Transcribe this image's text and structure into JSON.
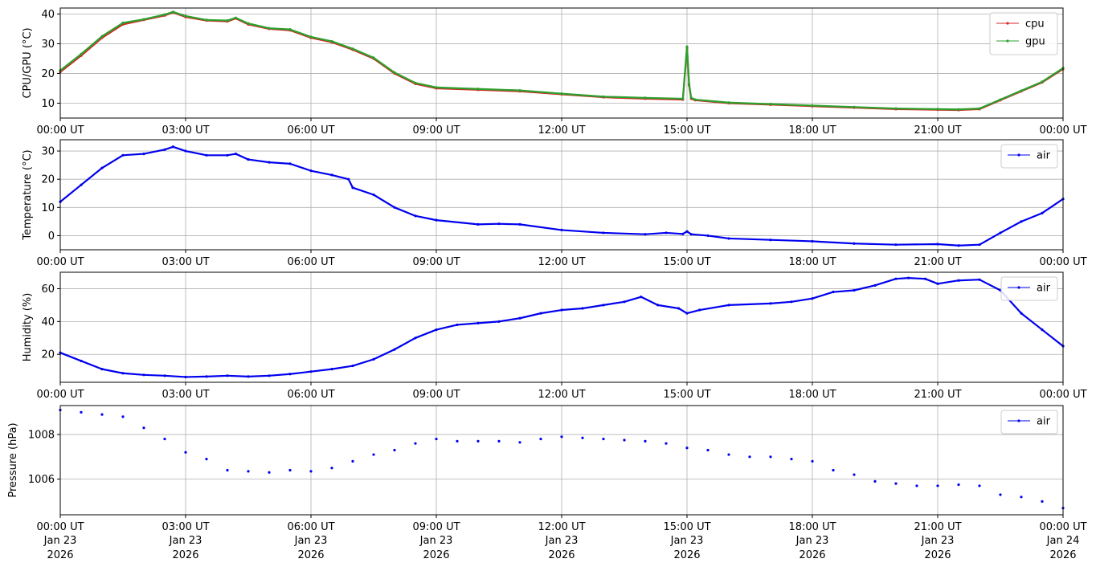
{
  "chart_data": [
    {
      "type": "line",
      "ylabel": "CPU/GPU (°C)",
      "xlabel": "",
      "ylim": [
        5,
        42
      ],
      "yticks": [
        10,
        20,
        30,
        40
      ],
      "xticks": [
        "00:00 UT",
        "03:00 UT",
        "06:00 UT",
        "09:00 UT",
        "12:00 UT",
        "15:00 UT",
        "18:00 UT",
        "21:00 UT",
        "00:00 UT"
      ],
      "xlim_hours": [
        0,
        24
      ],
      "grid": true,
      "legend": "top-right",
      "series": [
        {
          "name": "cpu",
          "color": "#d62728",
          "x": [
            0,
            0.5,
            1,
            1.5,
            2,
            2.5,
            2.7,
            3,
            3.5,
            4,
            4.2,
            4.5,
            5,
            5.5,
            6,
            6.5,
            7,
            7.5,
            8,
            8.5,
            9,
            10,
            11,
            12,
            13,
            14,
            14.9,
            15,
            15.05,
            15.1,
            15.2,
            16,
            17,
            18,
            19,
            20,
            21,
            21.5,
            22,
            22.5,
            23,
            23.5,
            24
          ],
          "values": [
            20.5,
            26,
            32,
            36.5,
            38,
            39.5,
            40.5,
            39,
            37.8,
            37.5,
            38.5,
            36.5,
            35,
            34.5,
            32,
            30.5,
            28,
            25,
            20,
            16.5,
            15,
            14.5,
            14,
            13,
            12,
            11.5,
            11.2,
            28.5,
            16,
            11.5,
            11,
            10,
            9.5,
            9,
            8.5,
            8,
            7.8,
            7.7,
            8,
            11,
            14,
            17,
            21.5
          ]
        },
        {
          "name": "gpu",
          "color": "#2ca02c",
          "x": [
            0,
            0.5,
            1,
            1.5,
            2,
            2.5,
            2.7,
            3,
            3.5,
            4,
            4.2,
            4.5,
            5,
            5.5,
            6,
            6.5,
            7,
            7.5,
            8,
            8.5,
            9,
            10,
            11,
            12,
            13,
            14,
            14.9,
            15,
            15.05,
            15.1,
            15.2,
            16,
            17,
            18,
            19,
            20,
            21,
            21.5,
            22,
            22.5,
            23,
            23.5,
            24
          ],
          "values": [
            21,
            26.5,
            32.5,
            37,
            38.2,
            39.8,
            40.7,
            39.3,
            38,
            37.8,
            38.7,
            36.8,
            35.2,
            34.8,
            32.3,
            30.8,
            28.3,
            25.3,
            20.3,
            16.8,
            15.3,
            14.8,
            14.3,
            13.2,
            12.2,
            11.8,
            11.5,
            29,
            16.5,
            11.8,
            11.2,
            10.2,
            9.7,
            9.2,
            8.7,
            8.2,
            8,
            7.9,
            8.2,
            11.2,
            14.2,
            17.2,
            21.8
          ]
        }
      ]
    },
    {
      "type": "line",
      "ylabel": "Temperature (°C)",
      "xlabel": "",
      "ylim": [
        -5,
        34
      ],
      "yticks": [
        0,
        10,
        20,
        30
      ],
      "xticks": [
        "00:00 UT",
        "03:00 UT",
        "06:00 UT",
        "09:00 UT",
        "12:00 UT",
        "15:00 UT",
        "18:00 UT",
        "21:00 UT",
        "00:00 UT"
      ],
      "xlim_hours": [
        0,
        24
      ],
      "grid": true,
      "legend": "top-right",
      "series": [
        {
          "name": "air",
          "color": "#0000ee",
          "x": [
            0,
            0.5,
            1,
            1.5,
            2,
            2.5,
            2.7,
            3,
            3.5,
            4,
            4.2,
            4.5,
            5,
            5.5,
            6,
            6.5,
            6.9,
            7,
            7.5,
            8,
            8.5,
            9,
            10,
            10.5,
            11,
            12,
            13,
            14,
            14.5,
            14.9,
            15,
            15.1,
            15.5,
            16,
            17,
            18,
            19,
            20,
            21,
            21.5,
            22,
            22.5,
            23,
            23.5,
            24
          ],
          "values": [
            12,
            18,
            24,
            28.5,
            29,
            30.5,
            31.5,
            30,
            28.5,
            28.5,
            29,
            27,
            26,
            25.5,
            23,
            21.5,
            20,
            17,
            14.5,
            10,
            7,
            5.5,
            4,
            4.2,
            4,
            2,
            1,
            0.5,
            1,
            0.6,
            1.5,
            0.5,
            0,
            -1,
            -1.5,
            -2,
            -2.8,
            -3.2,
            -3,
            -3.5,
            -3.2,
            1,
            5,
            8,
            13
          ]
        }
      ]
    },
    {
      "type": "line",
      "ylabel": "Humidity (%)",
      "xlabel": "",
      "ylim": [
        3,
        70
      ],
      "yticks": [
        20,
        40,
        60
      ],
      "xticks": [
        "00:00 UT",
        "03:00 UT",
        "06:00 UT",
        "09:00 UT",
        "12:00 UT",
        "15:00 UT",
        "18:00 UT",
        "21:00 UT",
        "00:00 UT"
      ],
      "xlim_hours": [
        0,
        24
      ],
      "grid": true,
      "legend": "top-right",
      "series": [
        {
          "name": "air",
          "color": "#0000ee",
          "x": [
            0,
            0.5,
            1,
            1.5,
            2,
            2.5,
            3,
            3.5,
            4,
            4.5,
            5,
            5.5,
            6,
            6.5,
            7,
            7.5,
            8,
            8.5,
            9,
            9.5,
            10,
            10.5,
            11,
            11.5,
            12,
            12.5,
            13,
            13.5,
            13.9,
            14.3,
            14.8,
            15,
            15.3,
            16,
            17,
            17.5,
            18,
            18.5,
            19,
            19.5,
            20,
            20.3,
            20.7,
            21,
            21.5,
            22,
            22.5,
            23,
            23.5,
            24
          ],
          "values": [
            21,
            16,
            11,
            8.5,
            7.5,
            7,
            6.2,
            6.5,
            7,
            6.5,
            7,
            8,
            9.5,
            11,
            13,
            17,
            23,
            30,
            35,
            38,
            39,
            40,
            42,
            45,
            47,
            48,
            50,
            52,
            55,
            50,
            48,
            45,
            47,
            50,
            51,
            52,
            54,
            58,
            59,
            62,
            66,
            66.5,
            66,
            63,
            65,
            65.5,
            59,
            45,
            35,
            25
          ]
        }
      ]
    },
    {
      "type": "scatter",
      "ylabel": "Pressure (hPa)",
      "xlabel": "",
      "ylim": [
        1004.4,
        1009.3
      ],
      "yticks": [
        1006,
        1008
      ],
      "xticks": [
        "00:00 UT",
        "03:00 UT",
        "06:00 UT",
        "09:00 UT",
        "12:00 UT",
        "15:00 UT",
        "18:00 UT",
        "21:00 UT",
        "00:00 UT"
      ],
      "xticks_line2": [
        "Jan 23",
        "Jan 23",
        "Jan 23",
        "Jan 23",
        "Jan 23",
        "Jan 23",
        "Jan 23",
        "Jan 23",
        "Jan 24"
      ],
      "xticks_line3": [
        "2026",
        "2026",
        "2026",
        "2026",
        "2026",
        "2026",
        "2026",
        "2026",
        "2026"
      ],
      "xlim_hours": [
        0,
        24
      ],
      "grid": true,
      "legend": "top-right",
      "series": [
        {
          "name": "air",
          "color": "#0000ee",
          "x": [
            0,
            0.5,
            1,
            1.5,
            2,
            2.5,
            3,
            3.5,
            4,
            4.5,
            5,
            5.5,
            6,
            6.5,
            7,
            7.5,
            8,
            8.5,
            9,
            9.5,
            10,
            10.5,
            11,
            11.5,
            12,
            12.5,
            13,
            13.5,
            14,
            14.5,
            15,
            15.5,
            16,
            16.5,
            17,
            17.5,
            18,
            18.5,
            19,
            19.5,
            20,
            20.5,
            21,
            21.5,
            22,
            22.5,
            23,
            23.5,
            24
          ],
          "values": [
            1009.1,
            1009.0,
            1008.9,
            1008.8,
            1008.3,
            1007.8,
            1007.2,
            1006.9,
            1006.4,
            1006.35,
            1006.3,
            1006.4,
            1006.35,
            1006.5,
            1006.8,
            1007.1,
            1007.3,
            1007.6,
            1007.8,
            1007.7,
            1007.7,
            1007.7,
            1007.65,
            1007.8,
            1007.9,
            1007.85,
            1007.8,
            1007.75,
            1007.7,
            1007.6,
            1007.4,
            1007.3,
            1007.1,
            1007.0,
            1007.0,
            1006.9,
            1006.8,
            1006.4,
            1006.2,
            1005.9,
            1005.8,
            1005.7,
            1005.7,
            1005.75,
            1005.7,
            1005.3,
            1005.2,
            1005.0,
            1004.7
          ]
        }
      ]
    }
  ]
}
